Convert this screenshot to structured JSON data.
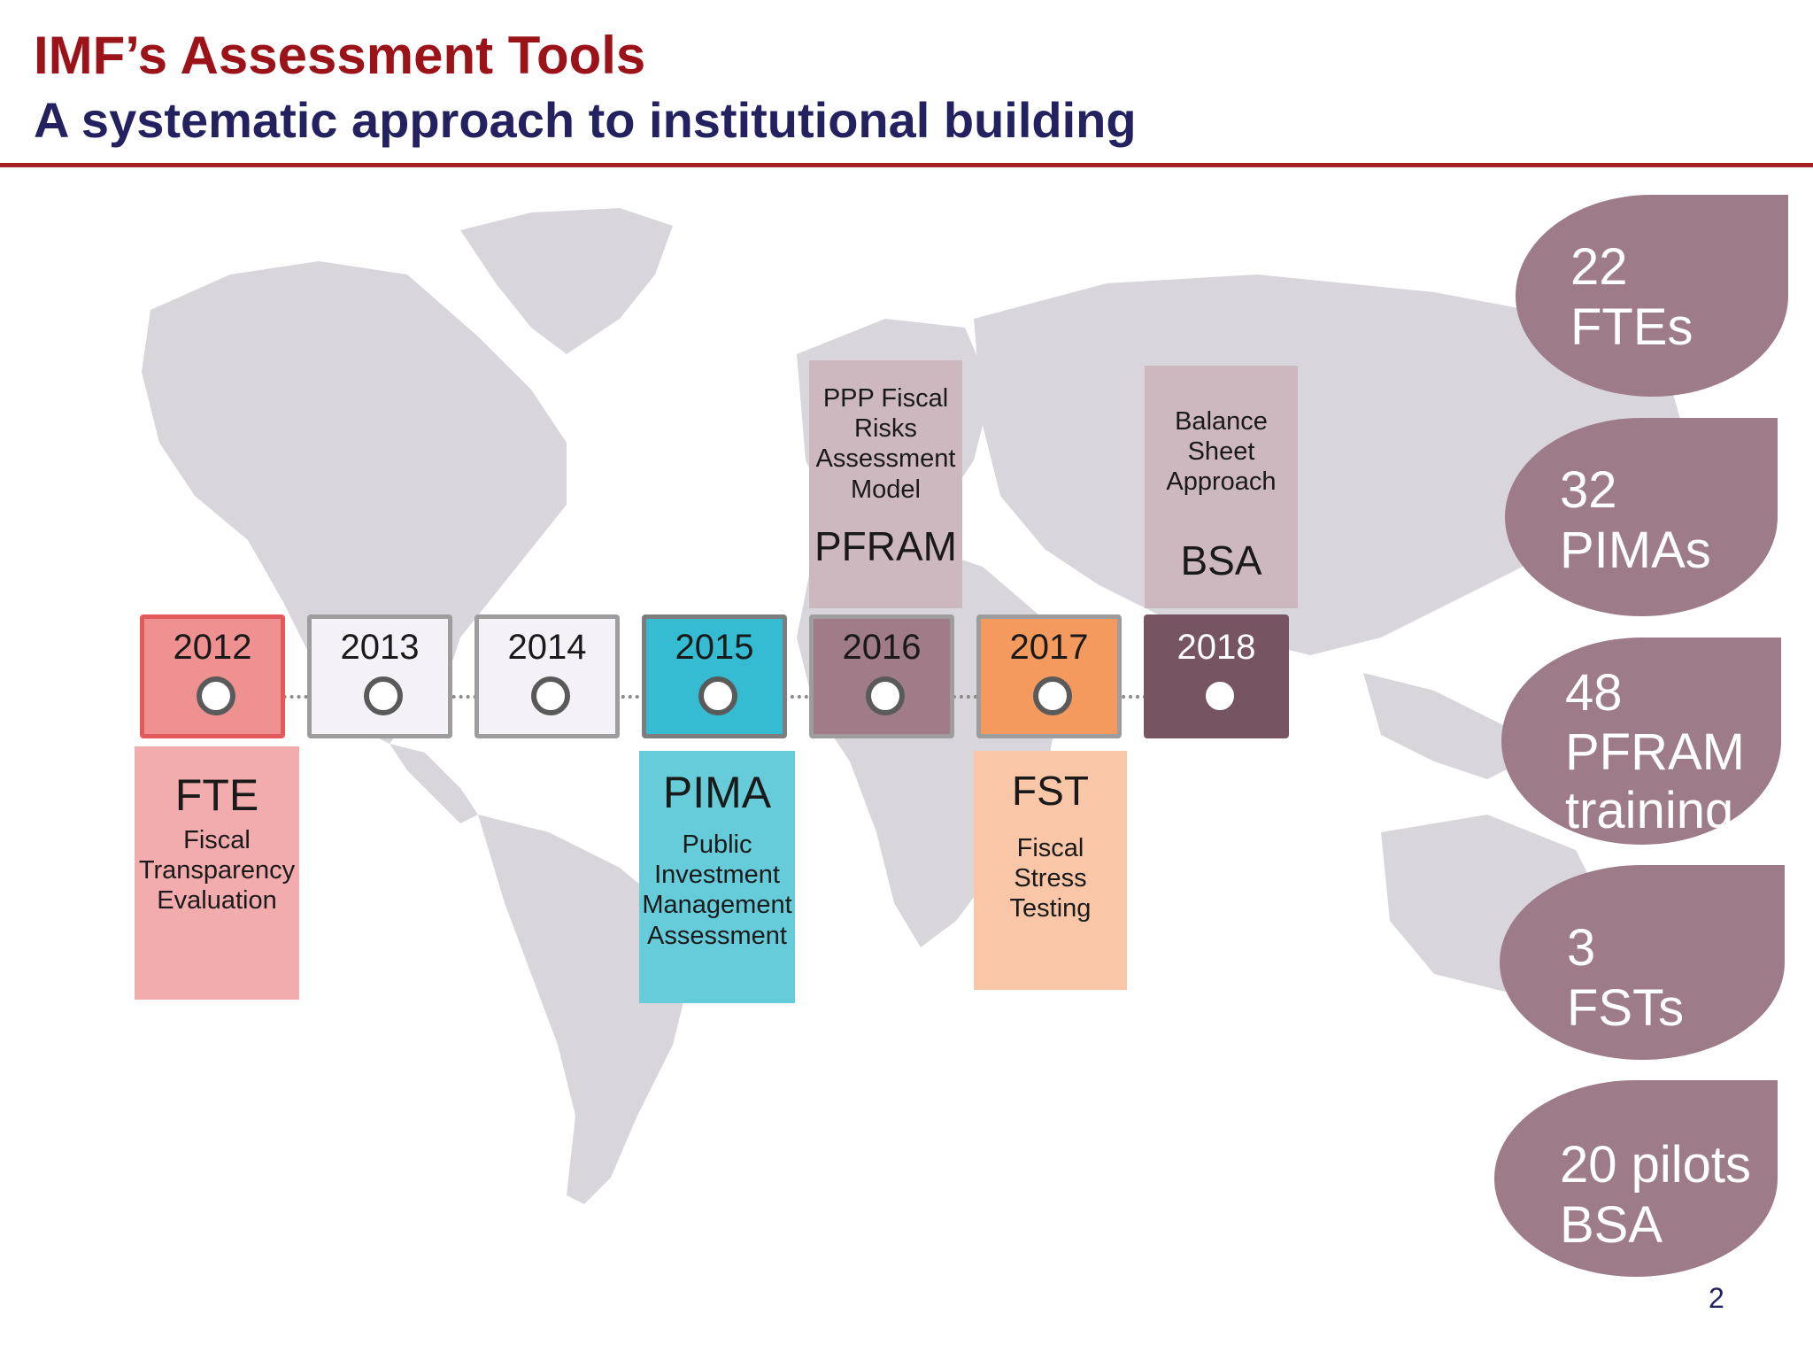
{
  "title": "IMF’s Assessment Tools",
  "subtitle": "A systematic approach to institutional building",
  "timeline": [
    {
      "year": "2012",
      "fill": "#ef9190",
      "border": "#e25a5a",
      "text_color": "#1a1a1a",
      "node": "#5a5a5a"
    },
    {
      "year": "2013",
      "fill": "#f4f2f6",
      "border": "#9d9d9d",
      "text_color": "#1a1a1a",
      "node": "#5a5a5a"
    },
    {
      "year": "2014",
      "fill": "#f4f2f6",
      "border": "#9d9d9d",
      "text_color": "#1a1a1a",
      "node": "#5a5a5a"
    },
    {
      "year": "2015",
      "fill": "#35bcd3",
      "border": "#7d7d7d",
      "text_color": "#1a1a1a",
      "node": "#5a5a5a"
    },
    {
      "year": "2016",
      "fill": "#a07b88",
      "border": "#9d9d9d",
      "text_color": "#1a1a1a",
      "node": "#5a5a5a"
    },
    {
      "year": "2017",
      "fill": "#f59a5e",
      "border": "#9d9d9d",
      "text_color": "#1a1a1a",
      "node": "#5a5a5a"
    },
    {
      "year": "2018",
      "fill": "#765462",
      "border": "#765462",
      "text_color": "#ffffff",
      "node": "#765462"
    }
  ],
  "tools": {
    "fte": {
      "acronym": "FTE",
      "name": [
        "Fiscal",
        "Transparency",
        "Evaluation"
      ],
      "color": "#f2acad"
    },
    "pima": {
      "acronym": "PIMA",
      "name": [
        "Public",
        "Investment",
        "Management",
        "Assessment"
      ],
      "color": "#66ccd9"
    },
    "fst": {
      "acronym": "FST",
      "name": [
        "Fiscal",
        "Stress",
        "Testing"
      ],
      "color": "#f9c6a8"
    },
    "pfram": {
      "acronym": "PFRAM",
      "name": [
        "PPP Fiscal",
        "Risks",
        "Assessment",
        "Model"
      ],
      "color": "#cdb8c0"
    },
    "bsa": {
      "acronym": "BSA",
      "name": [
        "Balance",
        "Sheet",
        "Approach"
      ],
      "color": "#cdb8c0"
    }
  },
  "stats": [
    [
      "22",
      "FTEs"
    ],
    [
      "32",
      "PIMAs"
    ],
    [
      "48",
      "PFRAM",
      "training"
    ],
    [
      "3",
      "FSTs"
    ],
    [
      "20 pilots",
      "BSA"
    ]
  ],
  "stat_color": "#9e7b88",
  "map_color": "#d9d6db",
  "page_number": "2"
}
